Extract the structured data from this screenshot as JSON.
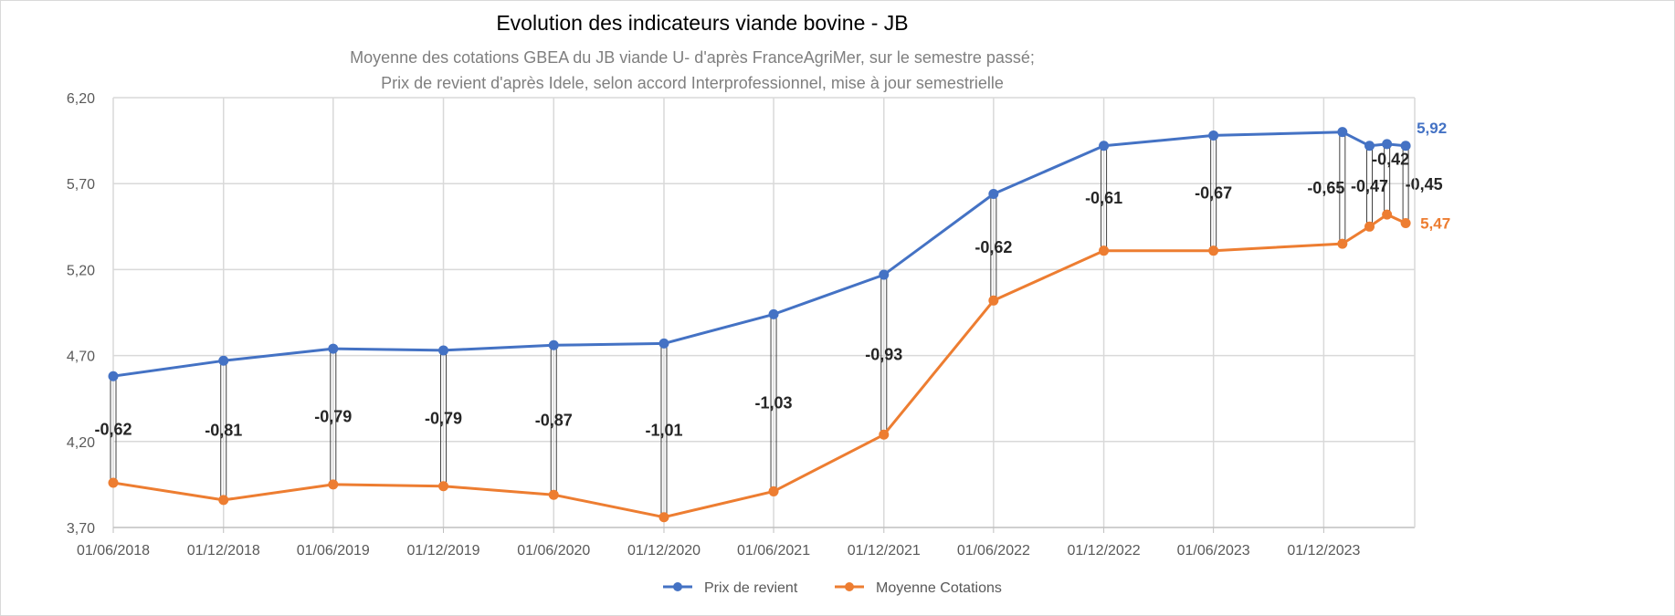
{
  "chart_data": {
    "type": "line",
    "title": "Evolution des indicateurs viande bovine - JB",
    "subtitle_lines": [
      "Moyenne des cotations GBEA du JB viande U- d'après FranceAgriMer, sur le semestre passé;",
      "Prix de revient d'après Idele, selon accord Interprofessionnel, mise à jour semestrielle"
    ],
    "x": [
      "2018-06-01",
      "2018-12-01",
      "2019-06-01",
      "2019-12-01",
      "2020-06-01",
      "2020-12-01",
      "2021-06-01",
      "2021-12-01",
      "2022-06-01",
      "2022-12-01",
      "2023-06-01",
      "2024-01-01",
      "2024-02-15",
      "2024-03-15",
      "2024-04-15"
    ],
    "x_tick_labels": [
      "01/06/2018",
      "01/12/2018",
      "01/06/2019",
      "01/12/2019",
      "01/06/2020",
      "01/12/2020",
      "01/06/2021",
      "01/12/2021",
      "01/06/2022",
      "01/12/2022",
      "01/06/2023",
      "01/12/2023"
    ],
    "x_ticks": [
      "2018-06-01",
      "2018-12-01",
      "2019-06-01",
      "2019-12-01",
      "2020-06-01",
      "2020-12-01",
      "2021-06-01",
      "2021-12-01",
      "2022-06-01",
      "2022-12-01",
      "2023-06-01",
      "2023-12-01"
    ],
    "x_range": [
      "2018-06-01",
      "2024-04-30"
    ],
    "ylim": [
      3.7,
      6.2
    ],
    "y_ticks": [
      "3,70",
      "4,20",
      "4,70",
      "5,20",
      "5,70",
      "6,20"
    ],
    "grid": true,
    "legend_position": "bottom",
    "series": [
      {
        "name": "Prix de revient",
        "color": "#4472c4",
        "values": [
          4.58,
          4.67,
          4.74,
          4.73,
          4.76,
          4.77,
          4.94,
          5.17,
          5.64,
          5.92,
          5.98,
          6.0,
          5.92,
          5.93,
          5.92
        ]
      },
      {
        "name": "Moyenne Cotations",
        "color": "#ed7d31",
        "values": [
          3.96,
          3.86,
          3.95,
          3.94,
          3.89,
          3.76,
          3.91,
          4.24,
          5.02,
          5.31,
          5.31,
          5.35,
          5.45,
          5.52,
          5.47
        ]
      }
    ],
    "differences": [
      "-0,62",
      "-0,81",
      "-0,79",
      "-0,79",
      "-0,87",
      "-1,01",
      "-1,03",
      "-0,93",
      "-0,62",
      "-0,61",
      "-0,67",
      "-0,65",
      "-0,47",
      "-0,42",
      "-0,45"
    ],
    "end_labels": {
      "prix": "5,92",
      "cotations": "5,47"
    }
  },
  "colors": {
    "prix": "#4472c4",
    "cotations": "#ed7d31",
    "grid": "#d9d9d9",
    "connector": "#404040"
  }
}
